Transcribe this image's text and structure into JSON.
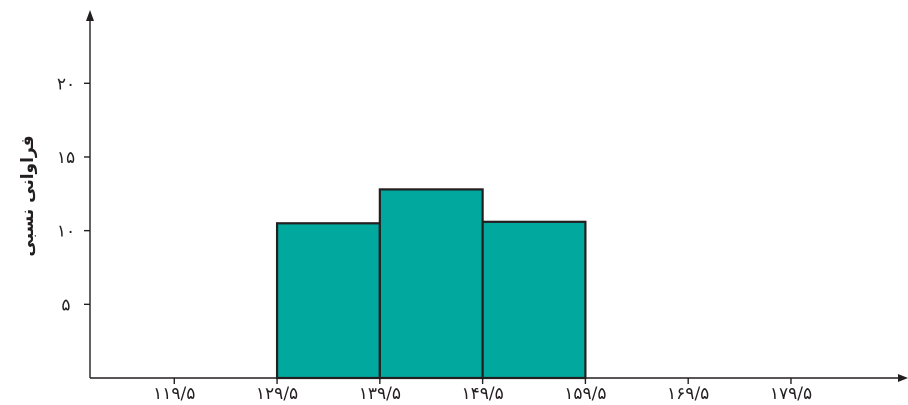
{
  "chart_data": {
    "type": "bar",
    "title": "",
    "xlabel": "",
    "ylabel": "فراوانی نسبی",
    "x_ticks": [
      "۱۱۹/۵",
      "۱۲۹/۵",
      "۱۳۹/۵",
      "۱۴۹/۵",
      "۱۵۹/۵",
      "۱۶۹/۵",
      "۱۷۹/۵"
    ],
    "x_tick_values": [
      119.5,
      129.5,
      139.5,
      149.5,
      159.5,
      169.5,
      179.5
    ],
    "y_ticks": [
      "۵",
      "۱۰",
      "۱۵",
      "۲۰"
    ],
    "y_tick_values": [
      5,
      10,
      15,
      20
    ],
    "xlim": [
      111.3,
      190.4
    ],
    "ylim": [
      0,
      24.5
    ],
    "bins": [
      {
        "from": 129.5,
        "to": 139.5,
        "value": 10.5
      },
      {
        "from": 139.5,
        "to": 149.5,
        "value": 12.8
      },
      {
        "from": 149.5,
        "to": 159.5,
        "value": 10.6
      }
    ],
    "grid": false,
    "colors": {
      "bar_fill": "#00a89d",
      "bar_stroke": "#231f20",
      "axis": "#231f20"
    }
  }
}
